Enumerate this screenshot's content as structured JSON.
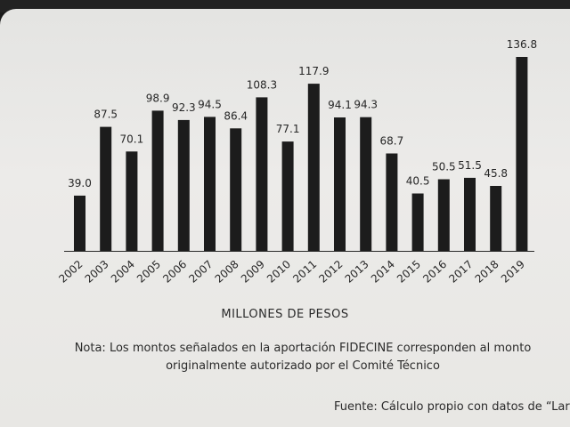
{
  "chart_data": {
    "type": "bar",
    "categories": [
      "2002",
      "2003",
      "2004",
      "2005",
      "2006",
      "2007",
      "2008",
      "2009",
      "2010",
      "2011",
      "2012",
      "2013",
      "2014",
      "2015",
      "2016",
      "2017",
      "2018",
      "2019"
    ],
    "values": [
      39.0,
      87.5,
      70.1,
      98.9,
      92.3,
      94.5,
      86.4,
      108.3,
      77.1,
      117.9,
      94.1,
      94.3,
      68.7,
      40.5,
      50.5,
      51.5,
      45.8,
      136.8
    ],
    "value_labels": [
      "39.0",
      "87.5",
      "70.1",
      "98.9",
      "92.3",
      "94.5",
      "86.4",
      "108.3",
      "77.1",
      "117.9",
      "94.1",
      "94.3",
      "68.7",
      "40.5",
      "50.5",
      "51.5",
      "45.8",
      "136.8"
    ],
    "xlabel": "MILLONES DE PESOS",
    "ylabel": "",
    "ylim": [
      0,
      140
    ],
    "grid": false,
    "legend": "none",
    "bar_color": "#1c1c1c"
  },
  "note": "Nota: Los montos señalados en la aportación FIDECINE corresponden al monto originalmente autorizado por el Comité Técnico",
  "source": "Fuente: Cálculo propio con datos de “Lar"
}
